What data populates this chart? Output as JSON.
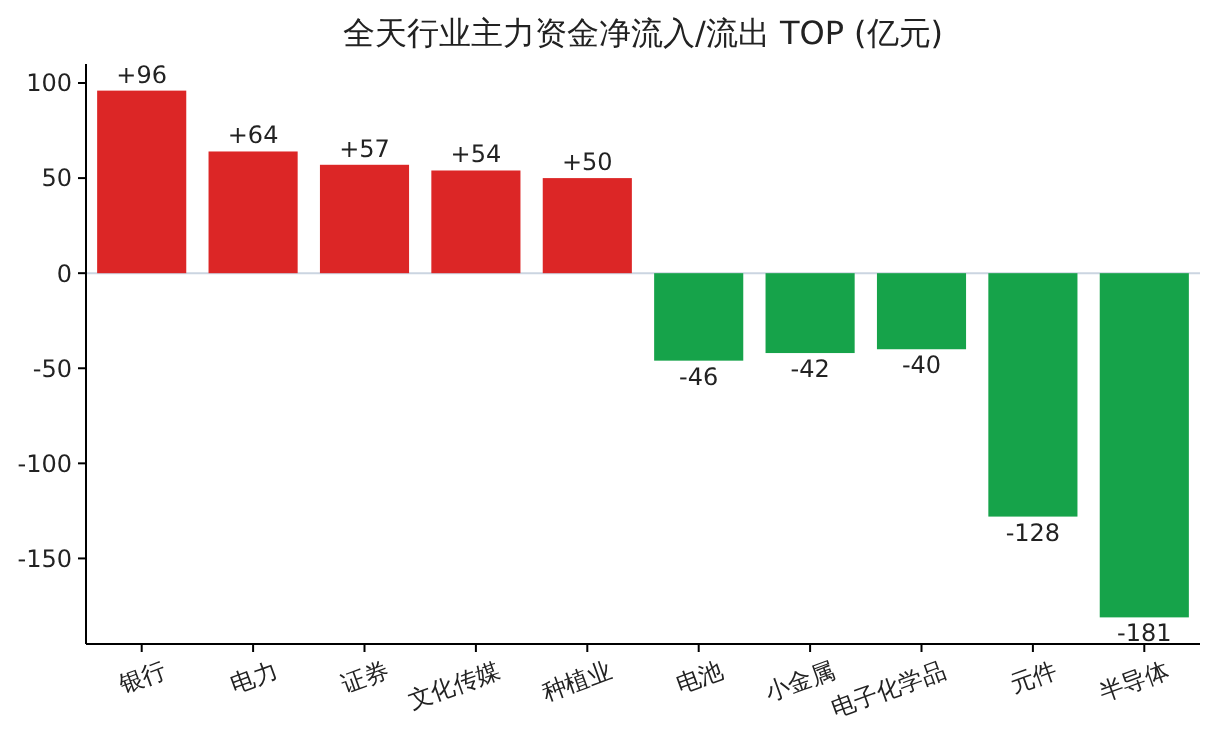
{
  "chart_data": {
    "type": "bar",
    "title": "全天行业主力资金净流入/流出 TOP (亿元)",
    "categories": [
      "银行",
      "电力",
      "证券",
      "文化传媒",
      "种植业",
      "电池",
      "小金属",
      "电子化学品",
      "元件",
      "半导体"
    ],
    "values": [
      96,
      64,
      57,
      54,
      50,
      -46,
      -42,
      -40,
      -128,
      -181
    ],
    "colors": [
      "#dc2626",
      "#dc2626",
      "#dc2626",
      "#dc2626",
      "#dc2626",
      "#16a34a",
      "#16a34a",
      "#16a34a",
      "#16a34a",
      "#16a34a"
    ],
    "value_labels": [
      "+96",
      "+64",
      "+57",
      "+54",
      "+50",
      "-46",
      "-42",
      "-40",
      "-128",
      "-181"
    ],
    "ylim": [
      -195,
      110
    ],
    "yticks": [
      -150,
      -100,
      -50,
      0,
      50,
      100
    ],
    "ref_lines": [
      {
        "axis": "y",
        "value": 0,
        "color": "#cbd5e1"
      }
    ],
    "grid": false
  }
}
